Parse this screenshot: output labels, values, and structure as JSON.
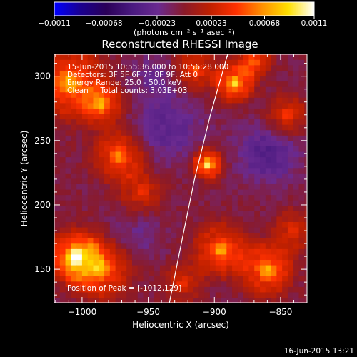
{
  "chart_data": {
    "type": "heatmap",
    "title": "Reconstructed RHESSI Image",
    "xlabel": "Heliocentric X (arcsec)",
    "ylabel": "Heliocentric Y (arcsec)",
    "xlim": [
      -1021,
      -830
    ],
    "ylim": [
      124,
      317
    ],
    "x_ticks": [
      -1000,
      -950,
      -900,
      -850
    ],
    "x_tick_labels": [
      "−1000",
      "−950",
      "−900",
      "−850"
    ],
    "y_ticks": [
      150,
      200,
      250,
      300
    ],
    "y_tick_labels": [
      "150",
      "200",
      "250",
      "300"
    ],
    "grid": false,
    "colorbar": {
      "min": -0.0011,
      "max": 0.0011,
      "ticks": [
        -0.0011,
        -0.00068,
        -0.00023,
        0.00023,
        0.00068,
        0.0011
      ],
      "tick_labels": [
        "−0.0011",
        "−0.00068",
        "−0.00023",
        "0.00023",
        "0.00068",
        "0.0011"
      ],
      "unit_text": "(photons cm⁻² s⁻¹ asec⁻²)",
      "palette": [
        "#0000ff",
        "#1a0090",
        "#2a0058",
        "#4a1a80",
        "#6a2a90",
        "#8a1a2a",
        "#c02000",
        "#ff3000",
        "#ff9000",
        "#ffe000",
        "#ffffff"
      ]
    },
    "annotations": [
      "15-Jun-2015 10:55:36.000 to 10:56:28.000",
      "Detectors: 3F 5F 6F 7F 8F 9F, Att 0",
      "Energy Range: 25.0 - 50.0 keV",
      "Clean     Total counts: 3.03E+03"
    ],
    "peak_label": "Position of Peak = [-1012,129]",
    "peak_position": [
      -1012,
      129
    ],
    "limb_curve": [
      [
        -934,
        124
      ],
      [
        -925,
        170
      ],
      [
        -915,
        220
      ],
      [
        -903,
        270
      ],
      [
        -890,
        317
      ]
    ],
    "sources": [
      {
        "x": -1005,
        "y": 160,
        "amp": 1.0,
        "sigma": 12
      },
      {
        "x": -985,
        "y": 150,
        "amp": 0.7,
        "sigma": 14
      },
      {
        "x": -1010,
        "y": 295,
        "amp": 0.8,
        "sigma": 16
      },
      {
        "x": -985,
        "y": 278,
        "amp": 0.65,
        "sigma": 10
      },
      {
        "x": -972,
        "y": 238,
        "amp": 0.7,
        "sigma": 12
      },
      {
        "x": -955,
        "y": 210,
        "amp": 0.45,
        "sigma": 10
      },
      {
        "x": -905,
        "y": 232,
        "amp": 1.0,
        "sigma": 7
      },
      {
        "x": -915,
        "y": 305,
        "amp": 0.55,
        "sigma": 10
      },
      {
        "x": -885,
        "y": 295,
        "amp": 0.9,
        "sigma": 9
      },
      {
        "x": -870,
        "y": 312,
        "amp": 0.6,
        "sigma": 8
      },
      {
        "x": -845,
        "y": 270,
        "amp": 0.5,
        "sigma": 10
      },
      {
        "x": -895,
        "y": 165,
        "amp": 0.75,
        "sigma": 12
      },
      {
        "x": -860,
        "y": 150,
        "amp": 0.8,
        "sigma": 12
      },
      {
        "x": -840,
        "y": 180,
        "amp": 0.45,
        "sigma": 10
      },
      {
        "x": -925,
        "y": 140,
        "amp": 0.4,
        "sigma": 10
      }
    ],
    "negative_regions": [
      {
        "x": -935,
        "y": 260,
        "amp": 0.7,
        "sigma": 18
      },
      {
        "x": -860,
        "y": 240,
        "amp": 0.9,
        "sigma": 16
      },
      {
        "x": -945,
        "y": 300,
        "amp": 0.5,
        "sigma": 12
      },
      {
        "x": -960,
        "y": 175,
        "amp": 0.4,
        "sigma": 14
      }
    ]
  },
  "footer": {
    "timestamp": "16-Jun-2015 13:21"
  }
}
